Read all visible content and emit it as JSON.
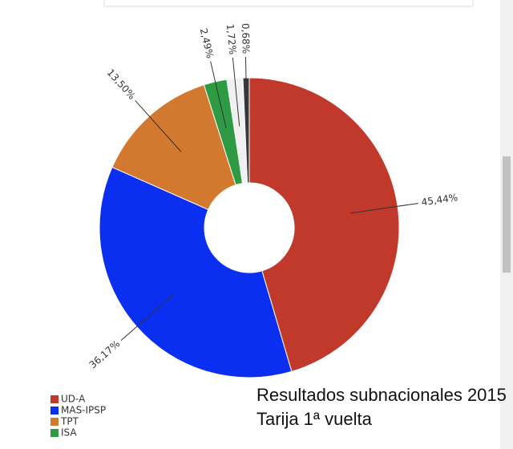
{
  "chart_data": {
    "type": "donut",
    "title": "Resultados subnacionales 2015 Tarija 1ª vuelta",
    "categories": [
      "UD-A",
      "MAS-IPSP",
      "TPT",
      "ISA",
      null,
      null
    ],
    "values": [
      45.44,
      36.17,
      13.5,
      2.49,
      1.72,
      0.68
    ],
    "value_labels": [
      "45,44%",
      "36,17%",
      "13,50%",
      "2,49%",
      "1,72%",
      "0,68%"
    ],
    "colors": [
      "#c0392b",
      "#0a2ff0",
      "#d2782f",
      "#2e9a44",
      "#f0f0f0",
      "#3a3a3a"
    ]
  }
}
